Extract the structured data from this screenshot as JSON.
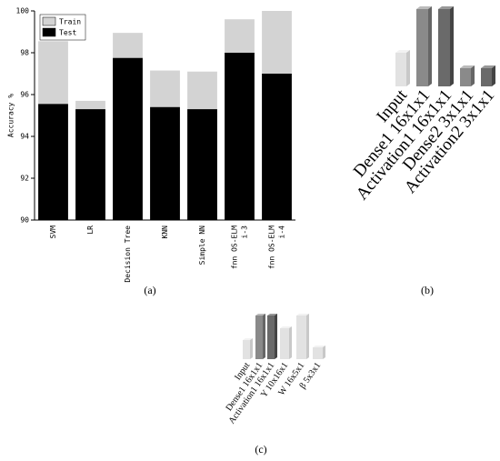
{
  "chart_data": [
    {
      "type": "bar",
      "caption": "(a)",
      "y_label": "Accuracy %",
      "categories": [
        "SVM",
        "LR",
        "Decision Tree",
        "KNN",
        "Simple NN",
        [
          "fnn OS-ELM",
          "i-3"
        ],
        [
          "fnn OS-ELM",
          "i-4"
        ]
      ],
      "series": [
        {
          "name": "Train",
          "color": "#d3d3d3",
          "values": [
            98.55,
            95.7,
            98.95,
            97.15,
            97.1,
            99.6,
            100
          ]
        },
        {
          "name": "Test",
          "color": "#000000",
          "values": [
            95.55,
            95.3,
            97.75,
            95.4,
            95.3,
            98.0,
            97.0
          ]
        }
      ],
      "ylim": [
        90,
        100
      ],
      "yticks": [
        90,
        92,
        94,
        96,
        98,
        100
      ],
      "legend": "upper left"
    },
    {
      "type": "diagram",
      "caption": "(b)",
      "labels": [
        "Input",
        "Dense1 16x1x1",
        "Activation1 16x1x1",
        "Dense2 3x1x1",
        "Activation2 3x1x1"
      ]
    },
    {
      "type": "diagram",
      "caption": "(c)",
      "labels": [
        "Input",
        "Dense1 16x1x1",
        "Activation1 16x1x1",
        "Y 10x16x1",
        "W 16x5x1",
        "β 5x3x1"
      ]
    }
  ]
}
